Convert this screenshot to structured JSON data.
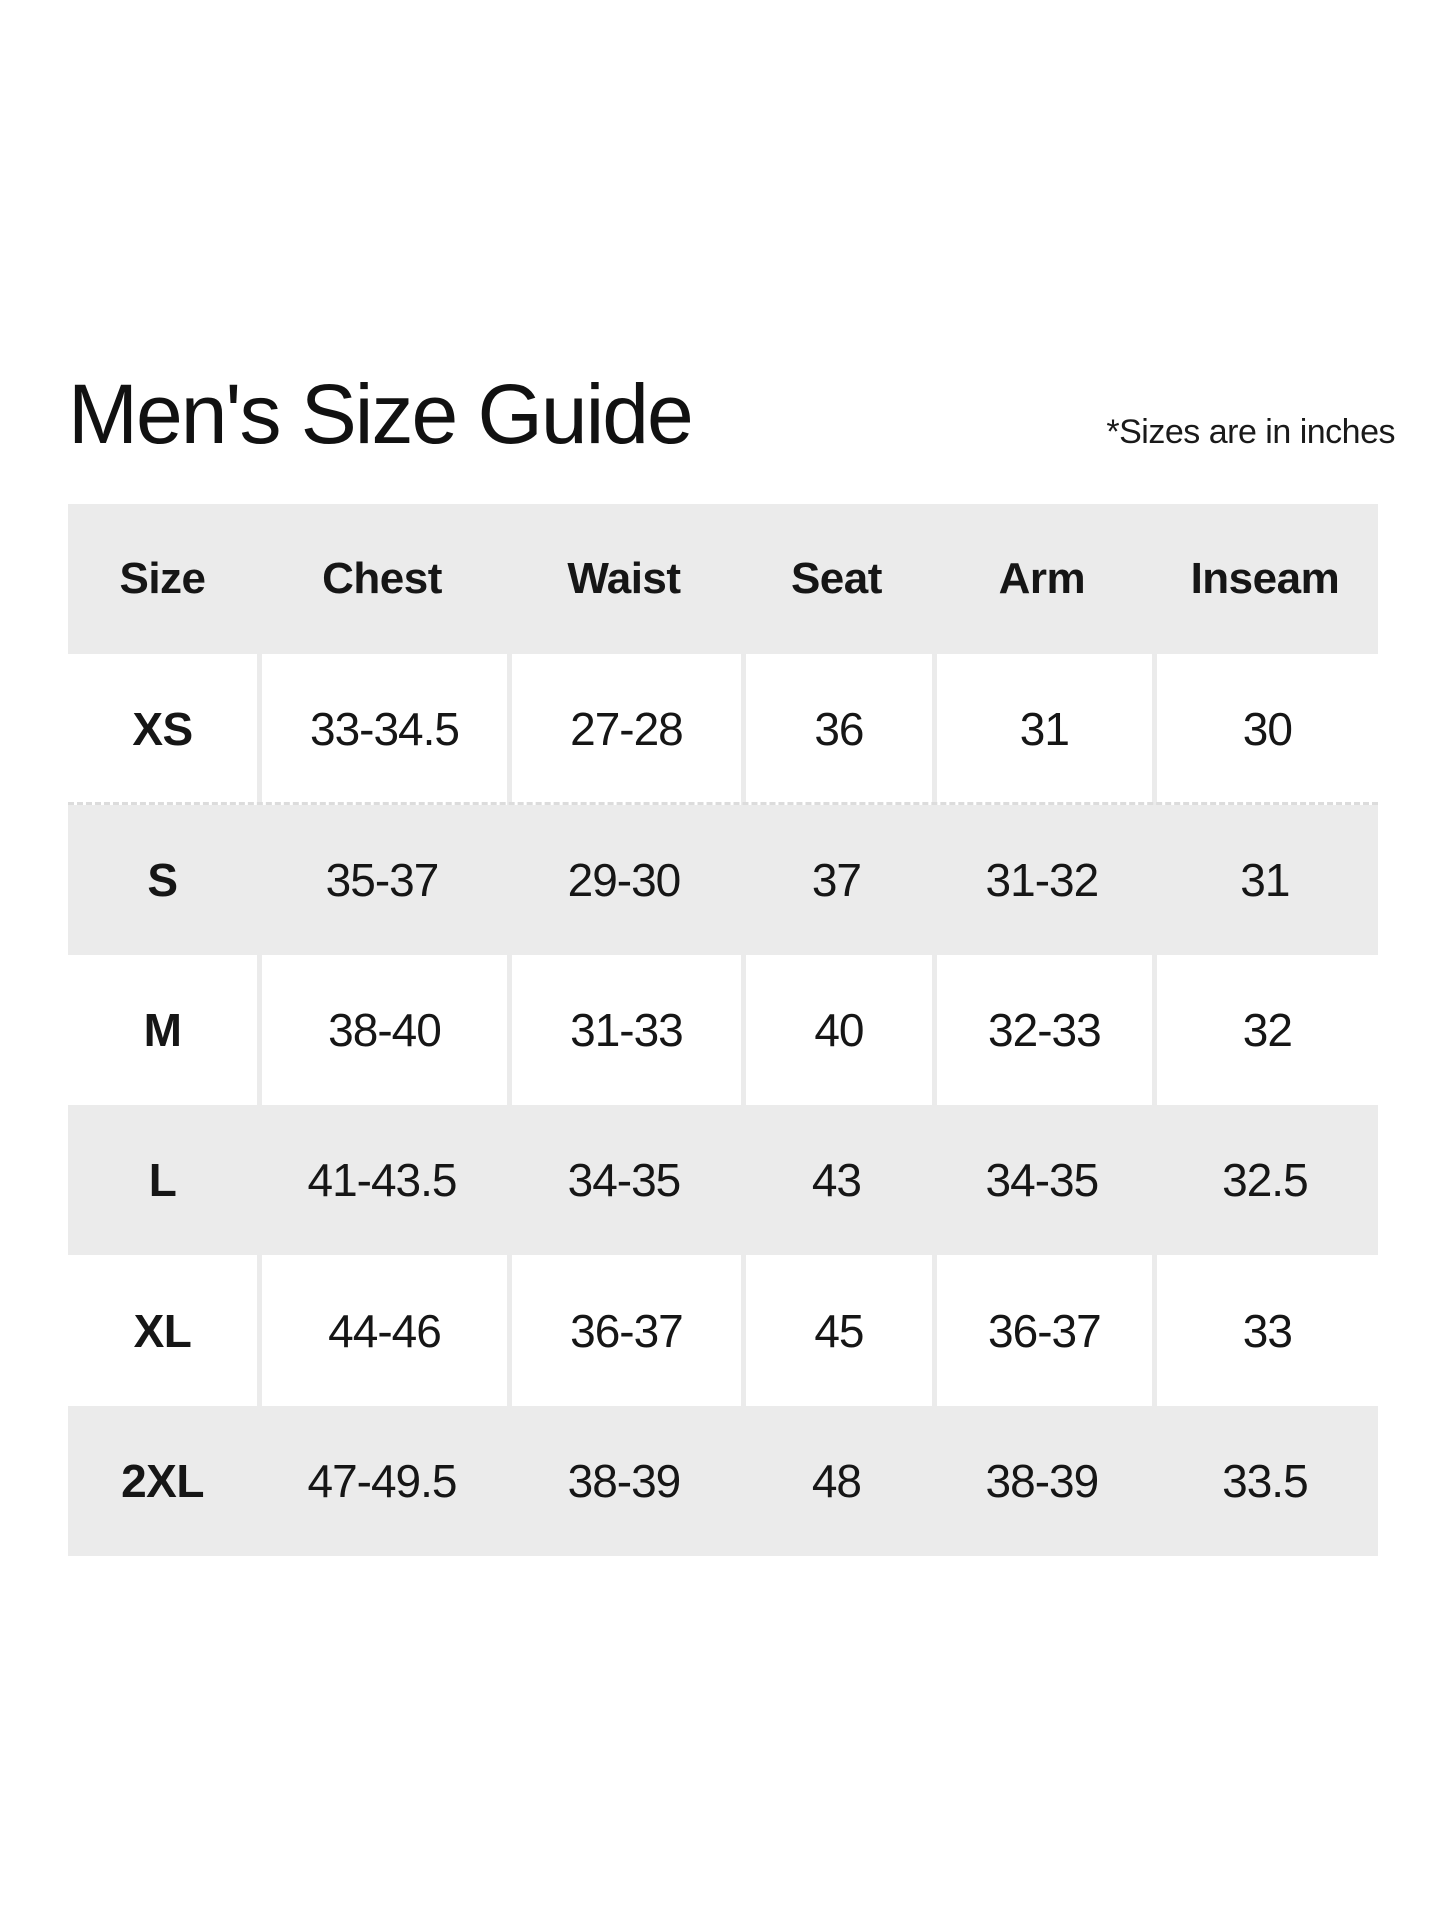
{
  "page": {
    "title": "Men's Size Guide",
    "note": "*Sizes are in inches"
  },
  "colors": {
    "row_stripe": "#ebebeb",
    "text": "#161616",
    "background": "#ffffff"
  },
  "table": {
    "columns": [
      "Size",
      "Chest",
      "Waist",
      "Seat",
      "Arm",
      "Inseam"
    ],
    "rows": [
      {
        "size": "XS",
        "chest": "33-34.5",
        "waist": "27-28",
        "seat": "36",
        "arm": "31",
        "inseam": "30"
      },
      {
        "size": "S",
        "chest": "35-37",
        "waist": "29-30",
        "seat": "37",
        "arm": "31-32",
        "inseam": "31"
      },
      {
        "size": "M",
        "chest": "38-40",
        "waist": "31-33",
        "seat": "40",
        "arm": "32-33",
        "inseam": "32"
      },
      {
        "size": "L",
        "chest": "41-43.5",
        "waist": "34-35",
        "seat": "43",
        "arm": "34-35",
        "inseam": "32.5"
      },
      {
        "size": "XL",
        "chest": "44-46",
        "waist": "36-37",
        "seat": "45",
        "arm": "36-37",
        "inseam": "33"
      },
      {
        "size": "2XL",
        "chest": "47-49.5",
        "waist": "38-39",
        "seat": "48",
        "arm": "38-39",
        "inseam": "33.5"
      }
    ]
  },
  "chart_data": {
    "type": "table",
    "title": "Men's Size Guide",
    "note": "*Sizes are in inches",
    "columns": [
      "Size",
      "Chest",
      "Waist",
      "Seat",
      "Arm",
      "Inseam"
    ],
    "rows": [
      [
        "XS",
        "33-34.5",
        "27-28",
        "36",
        "31",
        "30"
      ],
      [
        "S",
        "35-37",
        "29-30",
        "37",
        "31-32",
        "31"
      ],
      [
        "M",
        "38-40",
        "31-33",
        "40",
        "32-33",
        "32"
      ],
      [
        "L",
        "41-43.5",
        "34-35",
        "43",
        "34-35",
        "32.5"
      ],
      [
        "XL",
        "44-46",
        "36-37",
        "45",
        "36-37",
        "33"
      ],
      [
        "2XL",
        "47-49.5",
        "38-39",
        "48",
        "38-39",
        "33.5"
      ]
    ]
  }
}
